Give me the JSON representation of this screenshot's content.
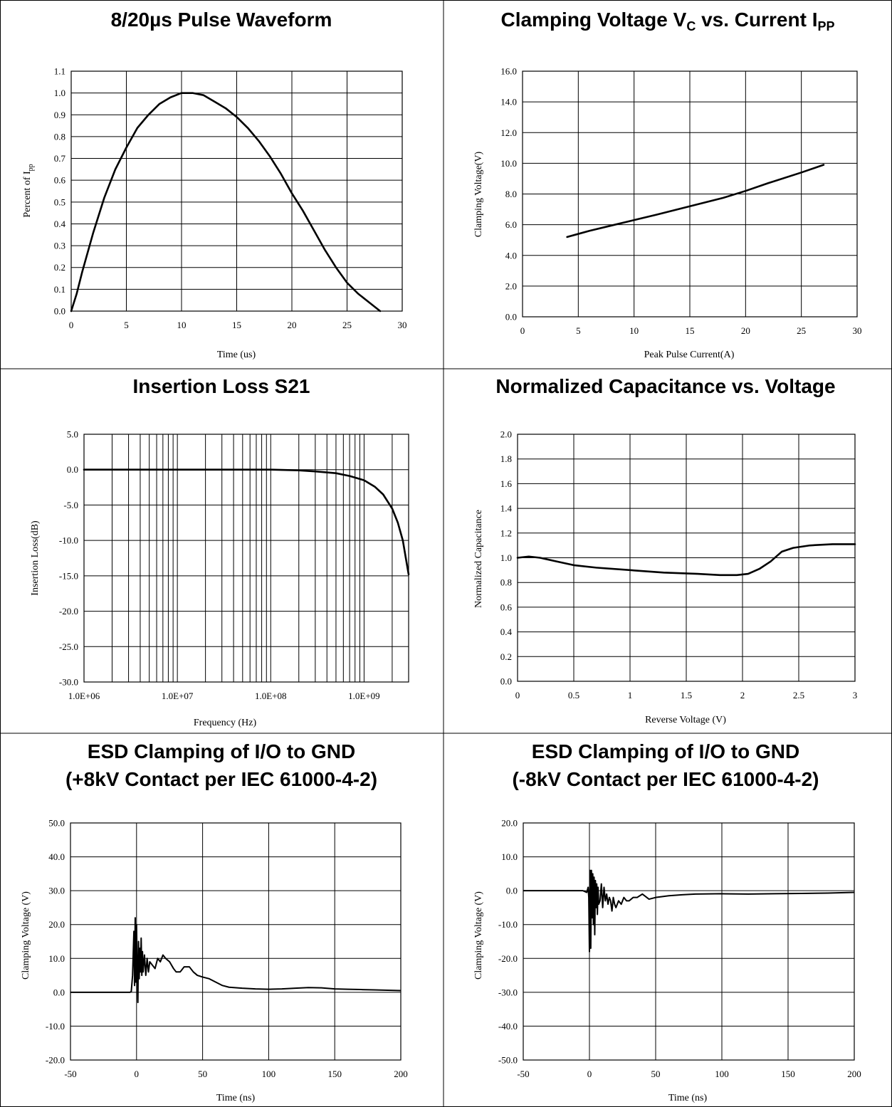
{
  "chart_data": [
    {
      "id": "c1",
      "type": "line",
      "title": "8/20µs Pulse Waveform",
      "xlabel": "Time (us)",
      "ylabel_main": "Percent of I",
      "ylabel_sub": "pp",
      "xlim": [
        0,
        30
      ],
      "ylim": [
        0,
        1.1
      ],
      "xticks": [
        0,
        5,
        10,
        15,
        20,
        25,
        30
      ],
      "xtick_labels": [
        "0",
        "5",
        "10",
        "15",
        "20",
        "25",
        "30"
      ],
      "yticks": [
        0,
        0.1,
        0.2,
        0.3,
        0.4,
        0.5,
        0.6,
        0.7,
        0.8,
        0.9,
        1.0,
        1.1
      ],
      "ytick_labels": [
        "0.0",
        "0.1",
        "0.2",
        "0.3",
        "0.4",
        "0.5",
        "0.6",
        "0.7",
        "0.8",
        "0.9",
        "1.0",
        "1.1"
      ],
      "grid": true,
      "series": [
        {
          "x": [
            0,
            0.5,
            1,
            2,
            3,
            4,
            5,
            6,
            7,
            8,
            9,
            10,
            11,
            12,
            13,
            14,
            15,
            16,
            17,
            18,
            19,
            20,
            21,
            22,
            23,
            24,
            25,
            26,
            27,
            28
          ],
          "y": [
            0,
            0.08,
            0.18,
            0.36,
            0.52,
            0.65,
            0.75,
            0.84,
            0.9,
            0.95,
            0.98,
            1.0,
            1.0,
            0.99,
            0.96,
            0.93,
            0.89,
            0.84,
            0.78,
            0.71,
            0.63,
            0.54,
            0.46,
            0.37,
            0.28,
            0.2,
            0.13,
            0.08,
            0.04,
            0
          ]
        }
      ]
    },
    {
      "id": "c2",
      "type": "line",
      "title_main": "Clamping Voltage V",
      "title_sub1": "C",
      "title_mid": " vs. Current I",
      "title_sub2": "PP",
      "xlabel": "Peak Pulse Current(A)",
      "ylabel": "Clamping Voltage(V)",
      "xlim": [
        0,
        30
      ],
      "ylim": [
        0,
        16
      ],
      "xticks": [
        0,
        5,
        10,
        15,
        20,
        25,
        30
      ],
      "xtick_labels": [
        "0",
        "5",
        "10",
        "15",
        "20",
        "25",
        "30"
      ],
      "yticks": [
        0,
        2,
        4,
        6,
        8,
        10,
        12,
        14,
        16
      ],
      "ytick_labels": [
        "0.0",
        "2.0",
        "4.0",
        "6.0",
        "8.0",
        "10.0",
        "12.0",
        "14.0",
        "16.0"
      ],
      "grid": true,
      "series": [
        {
          "x": [
            4,
            5,
            6,
            8,
            10,
            12,
            15,
            18,
            20,
            22,
            25,
            27
          ],
          "y": [
            5.2,
            5.4,
            5.6,
            5.95,
            6.3,
            6.65,
            7.2,
            7.75,
            8.2,
            8.7,
            9.4,
            9.9
          ]
        }
      ]
    },
    {
      "id": "c3",
      "type": "line",
      "title": "Insertion Loss S21",
      "xlabel": "Frequency (Hz)",
      "ylabel": "Insertion Loss(dB)",
      "xscale": "log",
      "xlim": [
        1000000,
        3000000000
      ],
      "ylim": [
        -30,
        5
      ],
      "xticks": [
        1000000,
        10000000,
        100000000,
        1000000000
      ],
      "xtick_labels": [
        "1.0E+06",
        "1.0E+07",
        "1.0E+08",
        "1.0E+09"
      ],
      "yticks": [
        -30,
        -25,
        -20,
        -15,
        -10,
        -5,
        0,
        5
      ],
      "ytick_labels": [
        "-30.0",
        "-25.0",
        "-20.0",
        "-15.0",
        "-10.0",
        "-5.0",
        "0.0",
        "5.0"
      ],
      "grid": true,
      "series": [
        {
          "x": [
            1000000,
            10000000,
            100000000,
            200000000,
            300000000,
            500000000,
            700000000,
            1000000000,
            1300000000,
            1600000000,
            2000000000,
            2300000000,
            2600000000,
            2800000000,
            3000000000
          ],
          "y": [
            0,
            0,
            0,
            -0.1,
            -0.25,
            -0.5,
            -0.9,
            -1.5,
            -2.4,
            -3.5,
            -5.5,
            -7.5,
            -10,
            -12.5,
            -14.8
          ]
        }
      ]
    },
    {
      "id": "c4",
      "type": "line",
      "title": "Normalized Capacitance vs. Voltage",
      "xlabel": "Reverse Voltage (V)",
      "ylabel": "Normalized Capacitance",
      "xlim": [
        0,
        3
      ],
      "ylim": [
        0,
        2
      ],
      "xticks": [
        0,
        0.5,
        1,
        1.5,
        2,
        2.5,
        3
      ],
      "xtick_labels": [
        "0",
        "0.5",
        "1",
        "1.5",
        "2",
        "2.5",
        "3"
      ],
      "yticks": [
        0,
        0.2,
        0.4,
        0.6,
        0.8,
        1.0,
        1.2,
        1.4,
        1.6,
        1.8,
        2.0
      ],
      "ytick_labels": [
        "0.0",
        "0.2",
        "0.4",
        "0.6",
        "0.8",
        "1.0",
        "1.2",
        "1.4",
        "1.6",
        "1.8",
        "2.0"
      ],
      "grid": true,
      "series": [
        {
          "x": [
            0,
            0.1,
            0.2,
            0.35,
            0.5,
            0.7,
            1.0,
            1.3,
            1.6,
            1.8,
            1.95,
            2.05,
            2.15,
            2.25,
            2.35,
            2.45,
            2.6,
            2.8,
            3.0
          ],
          "y": [
            1.0,
            1.01,
            1.0,
            0.97,
            0.94,
            0.92,
            0.9,
            0.88,
            0.87,
            0.86,
            0.86,
            0.87,
            0.91,
            0.97,
            1.05,
            1.08,
            1.1,
            1.11,
            1.11
          ]
        }
      ]
    },
    {
      "id": "c5",
      "type": "line",
      "title_line1": "ESD Clamping of I/O to GND",
      "title_line2": "(+8kV Contact per IEC 61000-4-2)",
      "xlabel": "Time (ns)",
      "ylabel": "Clamping Voltage (V)",
      "xlim": [
        -50,
        200
      ],
      "ylim": [
        -20,
        50
      ],
      "xticks": [
        -50,
        0,
        50,
        100,
        150,
        200
      ],
      "xtick_labels": [
        "-50",
        "0",
        "50",
        "100",
        "150",
        "200"
      ],
      "yticks": [
        -20,
        -10,
        0,
        10,
        20,
        30,
        40,
        50
      ],
      "ytick_labels": [
        "-20.0",
        "-10.0",
        "0.0",
        "10.0",
        "20.0",
        "30.0",
        "40.0",
        "50.0"
      ],
      "grid": true,
      "series": [
        {
          "x": [
            -50,
            -10,
            -5,
            -4,
            -3,
            -2,
            -1.5,
            -1,
            -0.5,
            0,
            0.5,
            1,
            1.5,
            2,
            2.5,
            3,
            3.5,
            4,
            4.5,
            5,
            6,
            7,
            8,
            9,
            10,
            12,
            14,
            16,
            18,
            20,
            22,
            25,
            28,
            30,
            33,
            36,
            40,
            43,
            46,
            50,
            55,
            60,
            65,
            70,
            80,
            90,
            100,
            110,
            120,
            130,
            140,
            150,
            160,
            170,
            180,
            190,
            200
          ],
          "y": [
            0,
            0,
            0,
            0.2,
            5,
            18,
            2,
            22,
            3,
            20,
            5,
            -3,
            15,
            4,
            13,
            6,
            16,
            5,
            12,
            6,
            11,
            5,
            10,
            6,
            9,
            8,
            7,
            10,
            9,
            11,
            10,
            9,
            7,
            6,
            6,
            7.5,
            7.5,
            6,
            5,
            4.5,
            4,
            3,
            2,
            1.5,
            1.2,
            1.0,
            0.9,
            1.0,
            1.2,
            1.4,
            1.3,
            1.0,
            0.9,
            0.8,
            0.7,
            0.6,
            0.5
          ]
        }
      ]
    },
    {
      "id": "c6",
      "type": "line",
      "title_line1": "ESD Clamping of I/O to GND",
      "title_line2": "(-8kV Contact per IEC 61000-4-2)",
      "xlabel": "Time (ns)",
      "ylabel": "Clamping Voltage (V)",
      "xlim": [
        -50,
        200
      ],
      "ylim": [
        -50,
        20
      ],
      "xticks": [
        -50,
        0,
        50,
        100,
        150,
        200
      ],
      "xtick_labels": [
        "-50",
        "0",
        "50",
        "100",
        "150",
        "200"
      ],
      "yticks": [
        -50,
        -40,
        -30,
        -20,
        -10,
        0,
        10,
        20
      ],
      "ytick_labels": [
        "-50.0",
        "-40.0",
        "-30.0",
        "-20.0",
        "-10.0",
        "0.0",
        "10.0",
        "20.0"
      ],
      "grid": true,
      "series": [
        {
          "x": [
            -50,
            -5,
            -2,
            -1,
            -0.5,
            0,
            0.5,
            1,
            1.5,
            2,
            2.5,
            3,
            3.5,
            4,
            4.5,
            5,
            5.5,
            6,
            6.5,
            7,
            8,
            9,
            10,
            11,
            12,
            13,
            14,
            15,
            16,
            17,
            18,
            19,
            20,
            22,
            24,
            26,
            28,
            30,
            33,
            36,
            40,
            45,
            50,
            60,
            70,
            80,
            100,
            120,
            140,
            160,
            180,
            200
          ],
          "y": [
            0,
            0,
            -0.5,
            1,
            -2,
            -18,
            6,
            -17,
            6,
            -8,
            5,
            -10,
            4,
            -13,
            3,
            -5,
            2,
            -7,
            1,
            -4,
            -3,
            2,
            -5,
            1,
            -3,
            -1,
            -4,
            -2,
            -3,
            -6,
            -2,
            -4,
            -5,
            -3,
            -4,
            -2,
            -3,
            -3,
            -2,
            -2,
            -1,
            -2.5,
            -2,
            -1.5,
            -1.2,
            -1,
            -0.9,
            -1,
            -0.9,
            -0.8,
            -0.7,
            -0.5
          ]
        }
      ]
    }
  ]
}
